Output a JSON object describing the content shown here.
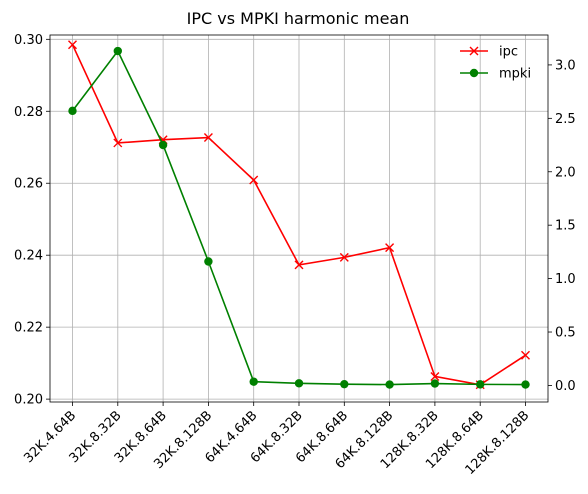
{
  "chart_data": {
    "type": "line",
    "title": "IPC vs MPKI harmonic mean",
    "xlabel": "",
    "ylabel": "",
    "y2label": "",
    "categories": [
      "32K.4.64B",
      "32K.8.32B",
      "32K.8.64B",
      "32K.8.128B",
      "64K.4.64B",
      "64K.8.32B",
      "64K.8.64B",
      "64K.8.128B",
      "128K.8.32B",
      "128K.8.64B",
      "128K.8.128B"
    ],
    "y_ticks": [
      "0.20",
      "0.22",
      "0.24",
      "0.26",
      "0.28",
      "0.30"
    ],
    "y2_ticks": [
      "0.0",
      "0.5",
      "1.0",
      "1.5",
      "2.0",
      "2.5",
      "3.0"
    ],
    "ylim": [
      0.1992,
      0.3012
    ],
    "y2lim": [
      -0.155,
      3.28
    ],
    "grid": true,
    "legend_position": "top-right",
    "series": [
      {
        "name": "ipc",
        "axis": "left",
        "color": "#ff0000",
        "marker": "x",
        "values": [
          0.2985,
          0.2712,
          0.2721,
          0.2727,
          0.2609,
          0.2373,
          0.2394,
          0.2421,
          0.2063,
          0.204,
          0.2122
        ]
      },
      {
        "name": "mpki",
        "axis": "right",
        "color": "#008000",
        "marker": "o",
        "values": [
          2.57,
          3.13,
          2.25,
          1.16,
          0.035,
          0.02,
          0.012,
          0.008,
          0.018,
          0.01,
          0.008
        ]
      }
    ]
  }
}
